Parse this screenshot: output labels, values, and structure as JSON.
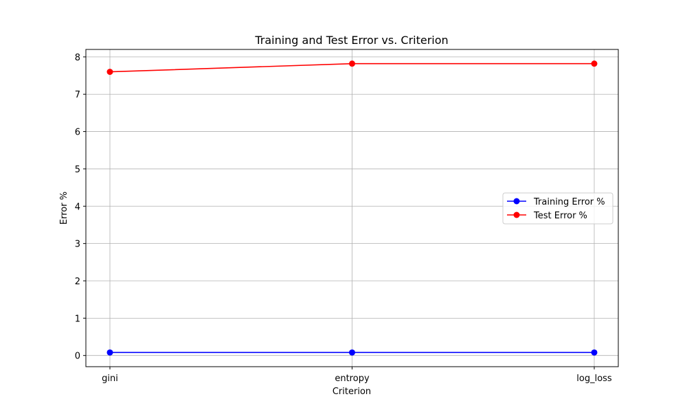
{
  "chart_data": {
    "type": "line",
    "title": "Training and Test Error vs. Criterion",
    "xlabel": "Criterion",
    "ylabel": "Error %",
    "categories": [
      "gini",
      "entropy",
      "log_loss"
    ],
    "yticks": [
      "0",
      "1",
      "2",
      "3",
      "4",
      "5",
      "6",
      "7",
      "8"
    ],
    "ylim": [
      -0.3,
      8.2
    ],
    "grid": true,
    "legend_position": "center-right",
    "series": [
      {
        "name": "Training Error %",
        "color": "#0000ff",
        "marker": "circle",
        "values": [
          0.08,
          0.08,
          0.08
        ]
      },
      {
        "name": "Test Error %",
        "color": "#ff0000",
        "marker": "circle",
        "values": [
          7.6,
          7.82,
          7.82
        ]
      }
    ]
  }
}
